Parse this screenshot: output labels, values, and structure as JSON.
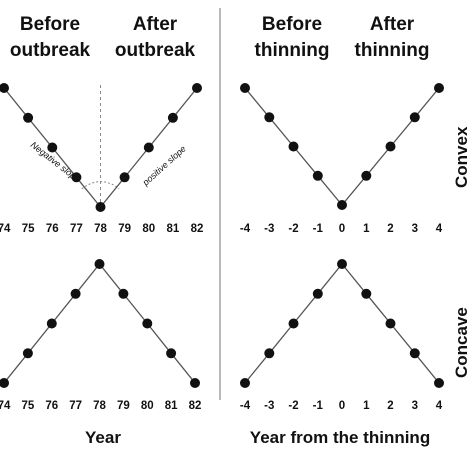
{
  "headers": {
    "left": {
      "before": [
        "Before",
        "outbreak"
      ],
      "after": [
        "After",
        "outbreak"
      ]
    },
    "right": {
      "before": [
        "Before",
        "thinning"
      ],
      "after": [
        "After",
        "thinning"
      ]
    }
  },
  "row_labels": {
    "convex": "Convex",
    "concave": "Concave"
  },
  "annotations": {
    "negative_slope": "Negative slope",
    "positive_slope": "positive slope"
  },
  "x_titles": {
    "left": "Year",
    "right": "Year from the thinning"
  },
  "colors": {
    "ink": "#111111",
    "line": "#555555",
    "divider": "#888888"
  },
  "chart_data": [
    {
      "type": "line",
      "panel": "top-left",
      "x": [
        74,
        75,
        76,
        77,
        78,
        79,
        80,
        81,
        82
      ],
      "tick_labels": [
        "74",
        "75",
        "76",
        "77",
        "78",
        "79",
        "80",
        "81",
        "82"
      ],
      "values": [
        4,
        3,
        2,
        1,
        0,
        1,
        2,
        3,
        4
      ],
      "ylim": [
        0,
        4
      ],
      "xlabel": "Year",
      "marker": "circle",
      "reference_line_x": 78
    },
    {
      "type": "line",
      "panel": "top-right",
      "x": [
        -4,
        -3,
        -2,
        -1,
        0,
        1,
        2,
        3,
        4
      ],
      "tick_labels": [
        "-4",
        "-3",
        "-2",
        "-1",
        "0",
        "1",
        "2",
        "3",
        "4"
      ],
      "values": [
        4,
        3,
        2,
        1,
        0,
        1,
        2,
        3,
        4
      ],
      "ylim": [
        0,
        4
      ],
      "xlabel": "Year from the thinning",
      "marker": "circle"
    },
    {
      "type": "line",
      "panel": "bottom-left",
      "x": [
        74,
        75,
        76,
        77,
        78,
        79,
        80,
        81,
        82
      ],
      "tick_labels": [
        "74",
        "75",
        "76",
        "77",
        "78",
        "79",
        "80",
        "81",
        "82"
      ],
      "values": [
        0,
        1,
        2,
        3,
        4,
        3,
        2,
        1,
        0
      ],
      "ylim": [
        0,
        4
      ],
      "xlabel": "Year",
      "marker": "circle"
    },
    {
      "type": "line",
      "panel": "bottom-right",
      "x": [
        -4,
        -3,
        -2,
        -1,
        0,
        1,
        2,
        3,
        4
      ],
      "tick_labels": [
        "-4",
        "-3",
        "-2",
        "-1",
        "0",
        "1",
        "2",
        "3",
        "4"
      ],
      "values": [
        0,
        1,
        2,
        3,
        4,
        3,
        2,
        1,
        0
      ],
      "ylim": [
        0,
        4
      ],
      "xlabel": "Year from the thinning",
      "marker": "circle"
    }
  ]
}
